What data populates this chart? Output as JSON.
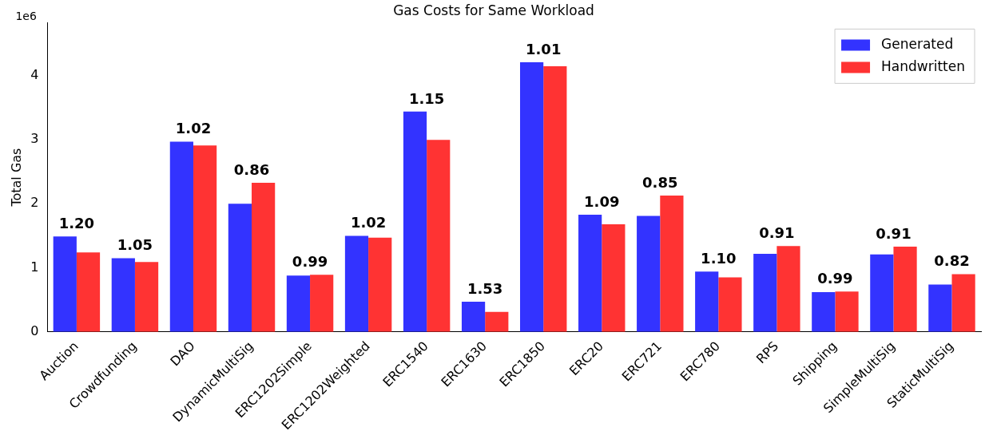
{
  "chart_data": {
    "type": "bar",
    "title": "Gas Costs for Same Workload",
    "ylabel": "Total Gas",
    "categories": [
      "Auction",
      "Crowdfunding",
      "DAO",
      "DynamicMultiSig",
      "ERC1202Simple",
      "ERC1202Weighted",
      "ERC1540",
      "ERC1630",
      "ERC1850",
      "ERC20",
      "ERC721",
      "ERC780",
      "RPS",
      "Shipping",
      "SimpleMultiSig",
      "StaticMultiSig"
    ],
    "series": [
      {
        "name": "Generated",
        "color": "#3333ff",
        "values": [
          1.49,
          1.15,
          2.97,
          2.0,
          0.88,
          1.5,
          3.44,
          0.47,
          4.21,
          1.83,
          1.81,
          0.94,
          1.22,
          0.62,
          1.21,
          0.74
        ]
      },
      {
        "name": "Handwritten",
        "color": "#ff3333",
        "values": [
          1.24,
          1.09,
          2.91,
          2.33,
          0.89,
          1.47,
          3.0,
          0.31,
          4.15,
          1.68,
          2.13,
          0.85,
          1.34,
          0.63,
          1.33,
          0.9
        ]
      }
    ],
    "ylim": [
      0,
      4.83
    ],
    "yticks": [
      0,
      1,
      2,
      3,
      4
    ],
    "legend": "top right",
    "annotations": [
      "1e6",
      {
        "text": "1.20",
        "x": "Auction",
        "y": 1.49
      },
      {
        "text": "1.05",
        "x": "Crowdfunding",
        "y": 1.15
      },
      {
        "text": "1.02",
        "x": "DAO",
        "y": 2.97
      },
      {
        "text": "0.86",
        "x": "DynamicMultiSig",
        "y": 2.33
      },
      {
        "text": "0.99",
        "x": "ERC1202Simple",
        "y": 0.89
      },
      {
        "text": "1.02",
        "x": "ERC1202Weighted",
        "y": 1.5
      },
      {
        "text": "1.15",
        "x": "ERC1540",
        "y": 3.44
      },
      {
        "text": "1.53",
        "x": "ERC1630",
        "y": 0.47
      },
      {
        "text": "1.01",
        "x": "ERC1850",
        "y": 4.21
      },
      {
        "text": "1.09",
        "x": "ERC20",
        "y": 1.83
      },
      {
        "text": "0.85",
        "x": "ERC721",
        "y": 2.13
      },
      {
        "text": "1.10",
        "x": "ERC780",
        "y": 0.94
      },
      {
        "text": "0.91",
        "x": "RPS",
        "y": 1.34
      },
      {
        "text": "0.99",
        "x": "Shipping",
        "y": 0.63
      },
      {
        "text": "0.91",
        "x": "SimpleMultiSig",
        "y": 1.33
      },
      {
        "text": "0.82",
        "x": "StaticMultiSig",
        "y": 0.9
      }
    ]
  }
}
